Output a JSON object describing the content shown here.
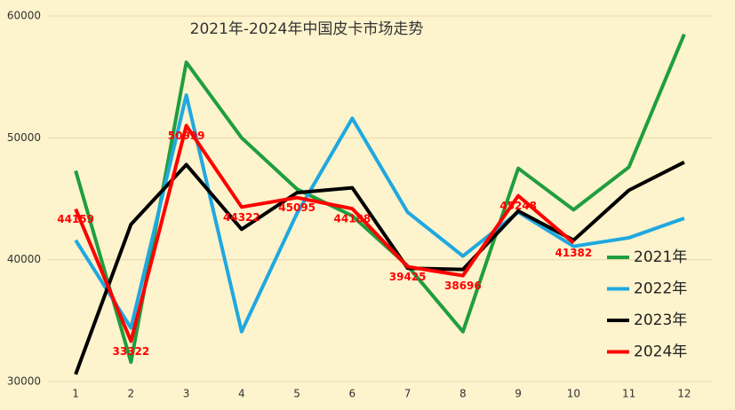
{
  "chart_data": {
    "type": "line",
    "title": "2021年-2024年中国皮卡市场走势",
    "categories": [
      "1",
      "2",
      "3",
      "4",
      "5",
      "6",
      "7",
      "8",
      "9",
      "10",
      "11",
      "12"
    ],
    "ylim": [
      30000,
      60000
    ],
    "yticks": [
      30000,
      40000,
      50000,
      60000
    ],
    "grid": true,
    "legend": "right",
    "series": [
      {
        "name": "2021年",
        "color": "#1f9e3f",
        "values": [
          47300,
          31600,
          56200,
          50000,
          45800,
          43600,
          39500,
          34100,
          47500,
          44100,
          47600,
          58500
        ]
      },
      {
        "name": "2022年",
        "color": "#1fa8e0",
        "values": [
          41600,
          34400,
          53500,
          34100,
          43800,
          51600,
          43900,
          40300,
          43900,
          41100,
          41800,
          43400
        ]
      },
      {
        "name": "2023年",
        "color": "#000000",
        "values": [
          30600,
          42900,
          47800,
          42500,
          45500,
          45900,
          39300,
          39200,
          44000,
          41600,
          45700,
          48000
        ]
      },
      {
        "name": "2024年",
        "color": "#ff0000",
        "data_labels": true,
        "values": [
          44159,
          33322,
          50999,
          44322,
          45095,
          44188,
          39425,
          38696,
          45248,
          41382,
          null,
          null
        ]
      }
    ]
  }
}
